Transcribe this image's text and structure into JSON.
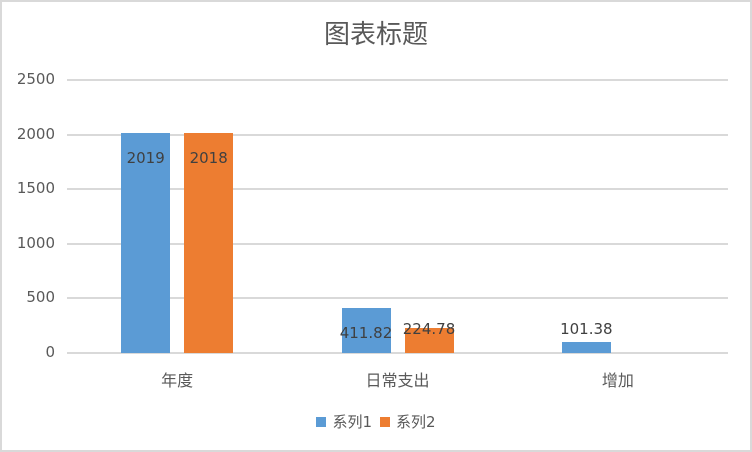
{
  "chart_data": {
    "type": "bar",
    "title": "图表标题",
    "categories": [
      "年度",
      "日常支出",
      "增加"
    ],
    "series": [
      {
        "name": "系列1",
        "color": "#5b9bd5",
        "values": [
          2019,
          411.82,
          101.38
        ],
        "labels": [
          "2019",
          "411.82",
          "101.38"
        ]
      },
      {
        "name": "系列2",
        "color": "#ed7d31",
        "values": [
          2018,
          224.78,
          null
        ],
        "labels": [
          "2018",
          "224.78",
          ""
        ]
      }
    ],
    "xlabel": "",
    "ylabel": "",
    "ylim": [
      0,
      2500
    ],
    "yticks": [
      "0",
      "500",
      "1000",
      "1500",
      "2000",
      "2500"
    ],
    "grid": true,
    "legend_position": "bottom"
  }
}
